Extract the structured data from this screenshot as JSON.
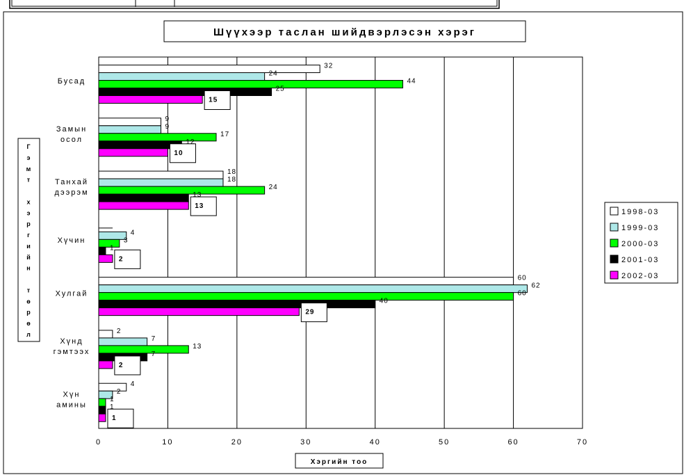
{
  "chart_data": {
    "type": "bar",
    "orientation": "horizontal",
    "title": "Шүүхээр таслан шийдвэрлэсэн хэрэг",
    "xlabel": "Хэргийн тоо",
    "ylabel": "Гэмт хэргийн төрөл",
    "xlim": [
      0,
      70
    ],
    "xticks": [
      "0",
      "10",
      "20",
      "30",
      "40",
      "50",
      "60",
      "70"
    ],
    "grid": "vertical",
    "legend_position": "right",
    "categories": [
      [
        "Бусад"
      ],
      [
        "Замын",
        "осол"
      ],
      [
        "Танхай",
        "дээрэм"
      ],
      [
        "Хүчин"
      ],
      [
        "Хулгай"
      ],
      [
        "Хүнд",
        "гэмтээх"
      ],
      [
        "Хүн",
        "амины"
      ]
    ],
    "series": [
      {
        "name": "1998-03",
        "color": "#ffffff",
        "values": [
          32,
          9,
          18,
          null,
          60,
          2,
          4
        ]
      },
      {
        "name": "1999-03",
        "color": "#aee8e8",
        "values": [
          24,
          9,
          18,
          4,
          62,
          7,
          2
        ]
      },
      {
        "name": "2000-03",
        "color": "#00ff00",
        "values": [
          44,
          17,
          24,
          3,
          60,
          13,
          1
        ]
      },
      {
        "name": "2001-03",
        "color": "#000000",
        "values": [
          25,
          12,
          13,
          1,
          40,
          7,
          1
        ]
      },
      {
        "name": "2002-03",
        "color": "#ff00ff",
        "values": [
          15,
          10,
          13,
          2,
          29,
          2,
          1
        ]
      }
    ]
  }
}
